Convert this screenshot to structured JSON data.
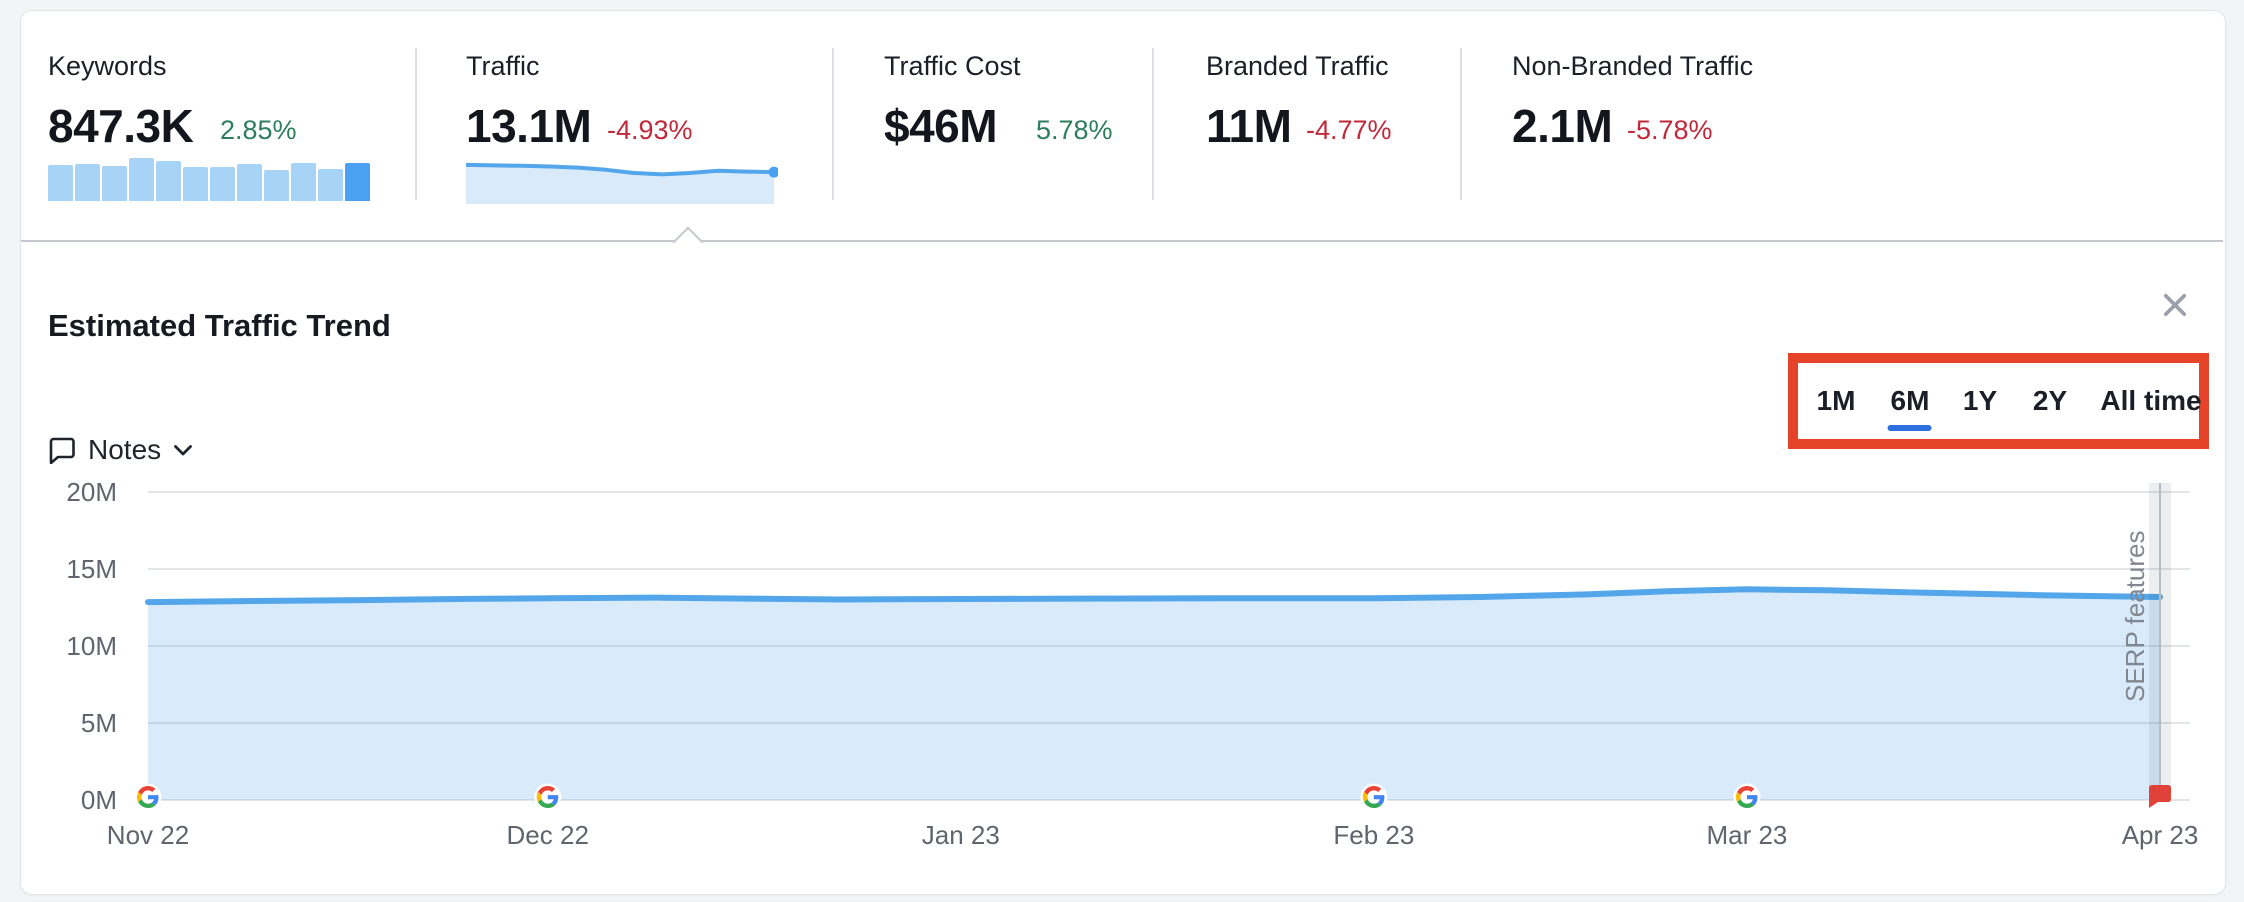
{
  "colors": {
    "positive": "#2e7d5f",
    "negative": "#c0293a",
    "accent_blue": "#2e6fe0",
    "highlight_border": "#e5432a",
    "chart_line": "#54a6ea",
    "chart_fill": "rgba(84,166,235,0.22)",
    "bar_light": "#a7d3f6",
    "bar_dark": "#4aa1f3",
    "axis_text": "#60646c",
    "grid_line": "#e2e5ea",
    "flag_red": "#e0423a",
    "band_line": "#b6bac1",
    "serp_text": "#82868e"
  },
  "metrics": [
    {
      "label": "Keywords",
      "value": "847.3K",
      "delta": "2.85%",
      "delta_dir": "up"
    },
    {
      "label": "Traffic",
      "value": "13.1M",
      "delta": "-4.93%",
      "delta_dir": "down",
      "selected": true
    },
    {
      "label": "Traffic Cost",
      "value": "$46M",
      "delta": "5.78%",
      "delta_dir": "up"
    },
    {
      "label": "Branded Traffic",
      "value": "11M",
      "delta": "-4.77%",
      "delta_dir": "down"
    },
    {
      "label": "Non-Branded Traffic",
      "value": "2.1M",
      "delta": "-5.78%",
      "delta_dir": "down"
    }
  ],
  "panel": {
    "title": "Estimated Traffic Trend",
    "notes_label": "Notes"
  },
  "range_selector": {
    "options": [
      "1M",
      "6M",
      "1Y",
      "2Y",
      "All time"
    ],
    "selected": "6M"
  },
  "chart_data": [
    {
      "name": "estimated-traffic-trend",
      "type": "area",
      "title": "Estimated Traffic Trend",
      "ylabel": "",
      "xlabel": "",
      "ylim": [
        0,
        20
      ],
      "y_unit": "M visits",
      "grid": true,
      "legend": "none",
      "y_ticks": [
        {
          "label": "20M",
          "value": 20
        },
        {
          "label": "15M",
          "value": 15
        },
        {
          "label": "10M",
          "value": 10
        },
        {
          "label": "5M",
          "value": 5
        },
        {
          "label": "0M",
          "value": 0
        }
      ],
      "x_ticks": [
        {
          "label": "Nov 22",
          "day": 0,
          "google_update": true
        },
        {
          "label": "Dec 22",
          "day": 30,
          "google_update": true
        },
        {
          "label": "Jan 23",
          "day": 61,
          "google_update": false
        },
        {
          "label": "Feb 23",
          "day": 92,
          "google_update": true
        },
        {
          "label": "Mar 23",
          "day": 120,
          "google_update": true
        },
        {
          "label": "Apr 23",
          "day": 151,
          "google_update": false
        }
      ],
      "x_range_days": 151,
      "series_unit_M": [
        [
          0,
          12.85
        ],
        [
          8,
          12.92
        ],
        [
          16,
          12.98
        ],
        [
          24,
          13.06
        ],
        [
          30,
          13.1
        ],
        [
          38,
          13.14
        ],
        [
          45,
          13.08
        ],
        [
          52,
          13.02
        ],
        [
          61,
          13.05
        ],
        [
          70,
          13.08
        ],
        [
          80,
          13.1
        ],
        [
          92,
          13.1
        ],
        [
          100,
          13.18
        ],
        [
          108,
          13.35
        ],
        [
          114,
          13.55
        ],
        [
          120,
          13.68
        ],
        [
          126,
          13.62
        ],
        [
          134,
          13.45
        ],
        [
          142,
          13.3
        ],
        [
          151,
          13.18
        ]
      ],
      "annotation": {
        "label": "SERP features",
        "day": 151,
        "marker": "red-flag"
      }
    },
    {
      "name": "keywords-mini-bars",
      "type": "bar",
      "values_relative": [
        84,
        86,
        81,
        100,
        93,
        79,
        79,
        86,
        72,
        88,
        74,
        88
      ],
      "highlight_last": true
    },
    {
      "name": "traffic-mini-sparkline",
      "type": "area",
      "values_relative": [
        0.95,
        0.92,
        0.9,
        0.86,
        0.8,
        0.68,
        0.5,
        0.42,
        0.5,
        0.62,
        0.58,
        0.55
      ],
      "end_dot": true
    }
  ]
}
